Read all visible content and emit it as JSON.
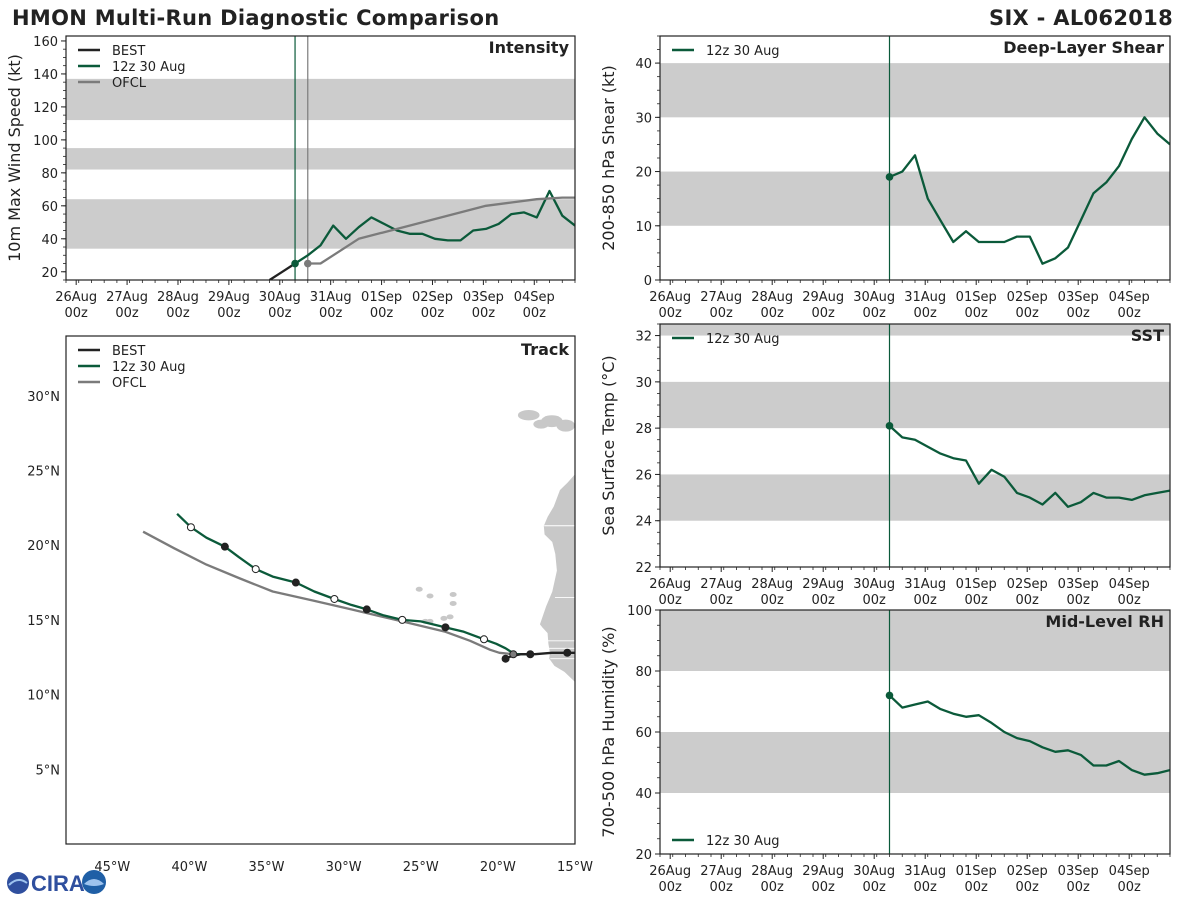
{
  "title_left": "HMON Multi-Run Diagnostic Comparison",
  "title_right": "SIX - AL062018",
  "logo_text": "CIRA",
  "colors": {
    "best": "#222222",
    "run": "#0b5a3a",
    "ofcl": "#7b7b7b",
    "band": "#cccccc",
    "land": "#c8c8c8"
  },
  "time_ticks": [
    "26Aug",
    "27Aug",
    "28Aug",
    "29Aug",
    "30Aug",
    "31Aug",
    "01Sep",
    "02Sep",
    "03Sep",
    "04Sep"
  ],
  "time_tick_sub": "00z",
  "chart_data": [
    {
      "id": "intensity",
      "type": "line",
      "title": "Intensity",
      "ylabel": "10m Max Wind Speed (kt)",
      "xlim": [
        0,
        10
      ],
      "ylim": [
        15,
        163
      ],
      "yticks": [
        20,
        40,
        60,
        80,
        100,
        120,
        140,
        160
      ],
      "bands": [
        [
          34,
          64
        ],
        [
          82,
          95
        ],
        [
          112,
          137
        ]
      ],
      "vlines": [
        {
          "x": 4.5,
          "series": "run"
        },
        {
          "x": 4.75,
          "series": "ofcl"
        }
      ],
      "legend": [
        "BEST",
        "12z 30 Aug",
        "OFCL"
      ],
      "series": [
        {
          "name": "BEST",
          "key": "best",
          "x": [
            4.0,
            4.25,
            4.5
          ],
          "y": [
            15,
            20,
            25
          ]
        },
        {
          "name": "12z 30 Aug",
          "key": "run",
          "marker_first": true,
          "x": [
            4.5,
            4.75,
            5.0,
            5.25,
            5.5,
            5.75,
            6.0,
            6.25,
            6.5,
            6.75,
            7.0,
            7.25,
            7.5,
            7.75,
            8.0,
            8.25,
            8.5,
            8.75,
            9.0,
            9.25,
            9.5,
            9.75,
            10.0
          ],
          "y": [
            25,
            30,
            36,
            48,
            40,
            47,
            53,
            49,
            45,
            43,
            43,
            40,
            39,
            39,
            45,
            46,
            49,
            55,
            56,
            53,
            69,
            54,
            48
          ]
        },
        {
          "name": "OFCL",
          "key": "ofcl",
          "marker_first": true,
          "x": [
            4.75,
            5.0,
            5.25,
            5.75,
            6.25,
            6.75,
            7.25,
            7.75,
            8.25,
            8.75,
            9.25,
            9.75,
            10.0
          ],
          "y": [
            25,
            25,
            30,
            40,
            44,
            48,
            52,
            56,
            60,
            62,
            64,
            65,
            65
          ]
        }
      ]
    },
    {
      "id": "shear",
      "type": "line",
      "title": "Deep-Layer Shear",
      "ylabel": "200-850 hPa Shear (kt)",
      "xlim": [
        0,
        10
      ],
      "ylim": [
        0,
        45
      ],
      "yticks": [
        0,
        10,
        20,
        30,
        40
      ],
      "bands": [
        [
          10,
          20
        ],
        [
          30,
          40
        ]
      ],
      "vlines": [
        {
          "x": 4.5,
          "series": "run"
        }
      ],
      "legend": [
        "12z 30 Aug"
      ],
      "series": [
        {
          "name": "12z 30 Aug",
          "key": "run",
          "marker_first": true,
          "x": [
            4.5,
            4.75,
            5.0,
            5.25,
            5.5,
            5.75,
            6.0,
            6.25,
            6.5,
            6.75,
            7.0,
            7.25,
            7.5,
            7.75,
            8.0,
            8.25,
            8.5,
            8.75,
            9.0,
            9.25,
            9.5,
            9.75,
            10.0
          ],
          "y": [
            19,
            20,
            23,
            15,
            11,
            7,
            9,
            7,
            7,
            7,
            8,
            8,
            3,
            4,
            6,
            11,
            16,
            18,
            21,
            26,
            30,
            27,
            25
          ]
        }
      ]
    },
    {
      "id": "sst",
      "type": "line",
      "title": "SST",
      "ylabel": "Sea Surface Temp (°C)",
      "xlim": [
        0,
        10
      ],
      "ylim": [
        22,
        32.5
      ],
      "yticks": [
        22,
        24,
        26,
        28,
        30,
        32
      ],
      "bands": [
        [
          24,
          26
        ],
        [
          28,
          30
        ],
        [
          32,
          34
        ]
      ],
      "vlines": [
        {
          "x": 4.5,
          "series": "run"
        }
      ],
      "legend": [
        "12z 30 Aug"
      ],
      "series": [
        {
          "name": "12z 30 Aug",
          "key": "run",
          "marker_first": true,
          "x": [
            4.5,
            4.75,
            5.0,
            5.25,
            5.5,
            5.75,
            6.0,
            6.25,
            6.5,
            6.75,
            7.0,
            7.25,
            7.5,
            7.75,
            8.0,
            8.25,
            8.5,
            8.75,
            9.0,
            9.25,
            9.5,
            9.75,
            10.0
          ],
          "y": [
            28.1,
            27.6,
            27.5,
            27.2,
            26.9,
            26.7,
            26.6,
            25.6,
            26.2,
            25.9,
            25.2,
            25.0,
            24.7,
            25.2,
            24.6,
            24.8,
            25.2,
            25.0,
            25.0,
            24.9,
            25.1,
            25.2,
            25.3
          ]
        }
      ]
    },
    {
      "id": "rh",
      "type": "line",
      "title": "Mid-Level RH",
      "ylabel": "700-500 hPa Humidity (%)",
      "xlim": [
        0,
        10
      ],
      "ylim": [
        20,
        100
      ],
      "yticks": [
        20,
        40,
        60,
        80,
        100
      ],
      "bands": [
        [
          40,
          60
        ],
        [
          80,
          100
        ]
      ],
      "vlines": [
        {
          "x": 4.5,
          "series": "run"
        }
      ],
      "legend": [
        "12z 30 Aug"
      ],
      "legend_position": "bottom-left",
      "series": [
        {
          "name": "12z 30 Aug",
          "key": "run",
          "marker_first": true,
          "x": [
            4.5,
            4.75,
            5.0,
            5.25,
            5.5,
            5.75,
            6.0,
            6.25,
            6.5,
            6.75,
            7.0,
            7.25,
            7.5,
            7.75,
            8.0,
            8.25,
            8.5,
            8.75,
            9.0,
            9.25,
            9.5,
            9.75,
            10.0
          ],
          "y": [
            72,
            68,
            69,
            70,
            67.5,
            66,
            65,
            65.5,
            63,
            60,
            58,
            57,
            55,
            53.5,
            54,
            52.5,
            49,
            49,
            50.5,
            47.5,
            46,
            46.5,
            47.5
          ]
        }
      ]
    },
    {
      "id": "track",
      "type": "line",
      "title": "Track",
      "xlim": [
        -48,
        -15
      ],
      "ylim": [
        0,
        34
      ],
      "xticks": [
        -45,
        -40,
        -35,
        -30,
        -25,
        -20,
        -15
      ],
      "xtick_labels": [
        "45°W",
        "40°W",
        "35°W",
        "30°W",
        "25°W",
        "20°W",
        "15°W"
      ],
      "yticks": [
        5,
        10,
        15,
        20,
        25,
        30
      ],
      "ytick_labels": [
        "5°N",
        "10°N",
        "15°N",
        "20°N",
        "25°N",
        "30°N"
      ],
      "legend": [
        "BEST",
        "12z 30 Aug",
        "OFCL"
      ],
      "series": [
        {
          "name": "BEST",
          "key": "best",
          "lon": [
            -15.0,
            -15.5,
            -16.5,
            -17.6,
            -18.5,
            -19.0,
            -19.6
          ],
          "lat": [
            12.8,
            12.8,
            12.8,
            12.7,
            12.7,
            12.6,
            12.4
          ],
          "markers": [
            {
              "lon": -15.5,
              "lat": 12.8,
              "fill": true
            },
            {
              "lon": -19.5,
              "lat": 12.4,
              "fill": true
            }
          ]
        },
        {
          "name": "12z 30 Aug",
          "key": "run",
          "lon": [
            -40.8,
            -39.9,
            -38.9,
            -37.7,
            -36.8,
            -35.7,
            -34.6,
            -33.1,
            -31.9,
            -30.6,
            -29.5,
            -28.5,
            -27.4,
            -26.2,
            -25.0,
            -23.4,
            -22.2,
            -20.9,
            -20.1,
            -19.5,
            -18.9,
            -18.3,
            -17.8
          ],
          "lat": [
            22.1,
            21.2,
            20.5,
            19.9,
            19.2,
            18.4,
            17.9,
            17.5,
            16.9,
            16.4,
            16.0,
            15.7,
            15.3,
            15.0,
            14.9,
            14.5,
            14.2,
            13.7,
            13.4,
            13.1,
            12.7,
            12.7,
            12.7
          ],
          "markers": [
            {
              "lon": -39.9,
              "lat": 21.2,
              "fill": false
            },
            {
              "lon": -37.7,
              "lat": 19.9,
              "fill": true
            },
            {
              "lon": -35.7,
              "lat": 18.4,
              "fill": false
            },
            {
              "lon": -33.1,
              "lat": 17.5,
              "fill": true
            },
            {
              "lon": -30.6,
              "lat": 16.4,
              "fill": false
            },
            {
              "lon": -28.5,
              "lat": 15.7,
              "fill": true
            },
            {
              "lon": -26.2,
              "lat": 15.0,
              "fill": false
            },
            {
              "lon": -23.4,
              "lat": 14.5,
              "fill": true
            },
            {
              "lon": -20.9,
              "lat": 13.7,
              "fill": false
            },
            {
              "lon": -17.9,
              "lat": 12.7,
              "fill": true
            }
          ]
        },
        {
          "name": "OFCL",
          "key": "ofcl",
          "lon": [
            -43.0,
            -41.0,
            -38.9,
            -36.8,
            -34.6,
            -32.0,
            -29.5,
            -26.2,
            -23.4,
            -21.8,
            -20.5,
            -19.9,
            -19.0,
            -18.5
          ],
          "lat": [
            20.9,
            19.8,
            18.7,
            17.8,
            16.9,
            16.3,
            15.7,
            14.9,
            14.2,
            13.6,
            13.0,
            12.8,
            12.7,
            12.7
          ],
          "markers": [
            {
              "lon": -19.0,
              "lat": 12.7,
              "fill": true
            }
          ]
        }
      ]
    }
  ]
}
